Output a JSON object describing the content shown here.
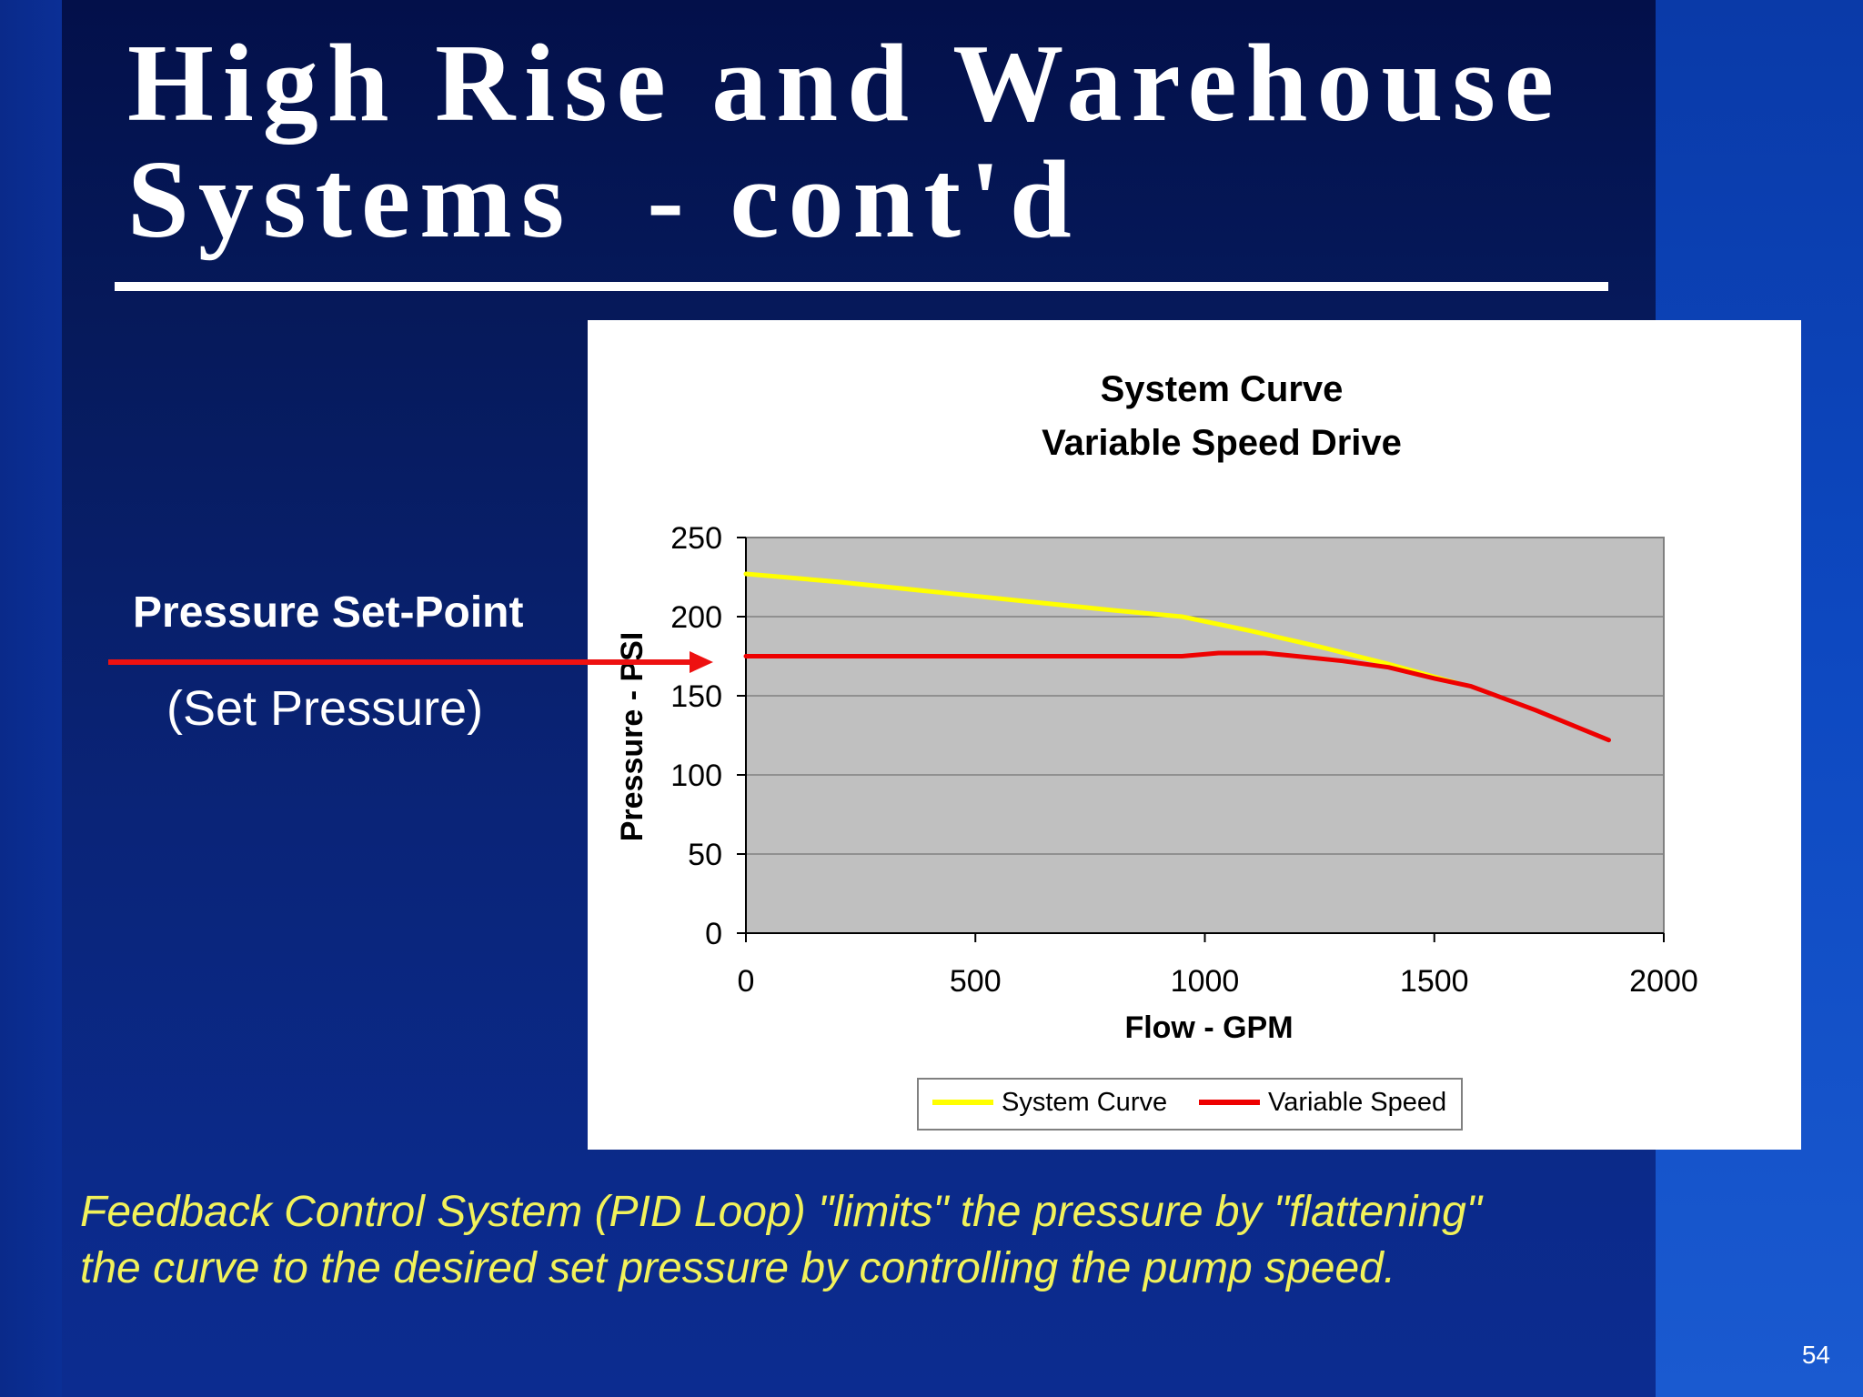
{
  "slide": {
    "title_line1": "High Rise and Warehouse",
    "title_line2": "Systems  - cont'd",
    "setpoint_label": "Pressure Set-Point",
    "setpoint_sub": "(Set Pressure)",
    "caption_line1": "Feedback Control System (PID Loop) \"limits\" the pressure by \"flattening\"",
    "caption_line2": "the curve to the desired set pressure by controlling the pump speed.",
    "page_number": "54",
    "colors": {
      "arrow": "#ee1111",
      "caption": "#f2f25a",
      "system_curve": "#ffff00",
      "variable_speed": "#ee0000",
      "plot_area": "#c0c0c0"
    }
  },
  "chart_data": {
    "type": "line",
    "title": "System Curve",
    "subtitle": "Variable Speed Drive",
    "xlabel": "Flow - GPM",
    "ylabel": "Pressure - PSI",
    "xlim": [
      0,
      2000
    ],
    "ylim": [
      0,
      250
    ],
    "x_ticks": [
      "0",
      "500",
      "1000",
      "1500",
      "2000"
    ],
    "y_ticks": [
      "0",
      "50",
      "100",
      "150",
      "200",
      "250"
    ],
    "grid": true,
    "legend_position": "bottom",
    "series": [
      {
        "name": "System Curve",
        "color": "#ffff00",
        "x": [
          0,
          200,
          400,
          600,
          800,
          950,
          1100,
          1250,
          1400,
          1550
        ],
        "y": [
          227,
          222,
          216,
          210,
          204,
          200,
          191,
          181,
          170,
          158
        ]
      },
      {
        "name": "Variable Speed",
        "color": "#ee0000",
        "x": [
          0,
          500,
          950,
          1030,
          1130,
          1200,
          1300,
          1400,
          1500,
          1580,
          1720,
          1880
        ],
        "y": [
          175,
          175,
          175,
          177,
          177,
          175,
          172,
          168,
          161,
          156,
          141,
          122
        ]
      }
    ]
  }
}
